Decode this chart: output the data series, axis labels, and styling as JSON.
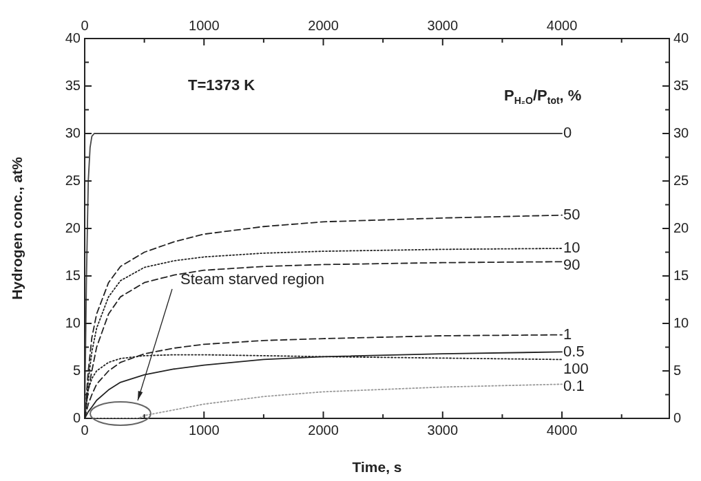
{
  "chart_data": {
    "type": "line",
    "xlabel": "Time, s",
    "ylabel": "Hydrogen conc., at%",
    "legend_title": "P$_{H₂O}$/P$_{tot}$, %",
    "annotations": [
      "T=1373 K",
      "Steam starved region"
    ],
    "xlim": [
      0,
      4900
    ],
    "xticks": [
      0,
      {
        "value": 500,
        "label": null
      },
      1000,
      {
        "value": 1500,
        "label": null
      },
      2000,
      {
        "value": 2500,
        "label": null
      },
      3000,
      {
        "value": 3500,
        "label": null
      },
      4000,
      {
        "value": 4500,
        "label": null
      }
    ],
    "x2lim": [
      0,
      4900
    ],
    "x2ticks": [
      0,
      {
        "value": 500,
        "label": null
      },
      1000,
      {
        "value": 1500,
        "label": null
      },
      2000,
      {
        "value": 2500,
        "label": null
      },
      3000,
      {
        "value": 3500,
        "label": null
      },
      4000,
      {
        "value": 4500,
        "label": null
      }
    ],
    "ylim": [
      0,
      40
    ],
    "yticks": [
      0,
      {
        "value": 2.5,
        "label": null
      },
      5,
      {
        "value": 7.5,
        "label": null
      },
      10,
      {
        "value": 12.5,
        "label": null
      },
      15,
      {
        "value": 17.5,
        "label": null
      },
      20,
      {
        "value": 22.5,
        "label": null
      },
      25,
      {
        "value": 27.5,
        "label": null
      },
      30,
      {
        "value": 32.5,
        "label": null
      },
      35,
      {
        "value": 37.5,
        "label": null
      },
      40
    ],
    "y2lim": [
      0,
      40
    ],
    "y2ticks": [
      0,
      {
        "value": 2.5,
        "label": null
      },
      5,
      {
        "value": 7.5,
        "label": null
      },
      10,
      {
        "value": 12.5,
        "label": null
      },
      15,
      {
        "value": 17.5,
        "label": null
      },
      20,
      {
        "value": 22.5,
        "label": null
      },
      25,
      {
        "value": 27.5,
        "label": null
      },
      30,
      {
        "value": 32.5,
        "label": null
      },
      35,
      {
        "value": 37.5,
        "label": null
      },
      40
    ],
    "grid": false,
    "legend": false,
    "marker": "none",
    "series": [
      {
        "name": "0",
        "color": "#444444",
        "line_style": "solid",
        "x": [
          0,
          15,
          30,
          45,
          60,
          80,
          4000
        ],
        "values": [
          0,
          15,
          25,
          28.5,
          29.7,
          30,
          30
        ]
      },
      {
        "name": "50",
        "color": "#222222",
        "line_style": "dashed",
        "x": [
          0,
          30,
          60,
          100,
          200,
          300,
          500,
          750,
          1000,
          1500,
          2000,
          3000,
          4000
        ],
        "values": [
          0,
          5,
          8.5,
          11,
          14.3,
          16,
          17.5,
          18.6,
          19.4,
          20.2,
          20.7,
          21.1,
          21.4
        ]
      },
      {
        "name": "10",
        "color": "#222222",
        "line_style": "dotted",
        "x": [
          0,
          30,
          60,
          100,
          200,
          300,
          500,
          750,
          1000,
          1500,
          2000,
          3000,
          4000
        ],
        "values": [
          0,
          4,
          7,
          9.5,
          12.8,
          14.5,
          15.9,
          16.6,
          17.0,
          17.4,
          17.6,
          17.8,
          17.9
        ]
      },
      {
        "name": "90",
        "color": "#222222",
        "line_style": "dashed",
        "x": [
          0,
          30,
          60,
          100,
          200,
          300,
          500,
          750,
          1000,
          1500,
          2000,
          3000,
          4000
        ],
        "values": [
          0,
          3,
          5,
          7.5,
          11,
          12.8,
          14.3,
          15.1,
          15.6,
          16.0,
          16.2,
          16.4,
          16.5
        ]
      },
      {
        "name": "1",
        "color": "#222222",
        "line_style": "dashed",
        "x": [
          0,
          30,
          60,
          100,
          200,
          300,
          500,
          750,
          1000,
          1500,
          2000,
          3000,
          4000
        ],
        "values": [
          0,
          1.5,
          2.5,
          3.6,
          5,
          5.9,
          6.8,
          7.4,
          7.8,
          8.2,
          8.4,
          8.7,
          8.8
        ]
      },
      {
        "name": "0.5",
        "color": "#222222",
        "line_style": "solid",
        "x": [
          0,
          30,
          60,
          100,
          200,
          300,
          500,
          750,
          1000,
          1500,
          2000,
          3000,
          4000
        ],
        "values": [
          0,
          0.7,
          1.2,
          1.9,
          3,
          3.8,
          4.6,
          5.2,
          5.6,
          6.2,
          6.5,
          6.8,
          7.0
        ]
      },
      {
        "name": "100",
        "color": "#222222",
        "line_style": "dotted",
        "x": [
          0,
          30,
          60,
          100,
          200,
          300,
          500,
          750,
          1000,
          1500,
          2000,
          3000,
          4000
        ],
        "values": [
          0,
          3,
          4.2,
          5.0,
          5.9,
          6.3,
          6.6,
          6.7,
          6.7,
          6.6,
          6.5,
          6.35,
          6.2
        ]
      },
      {
        "name": "0.1",
        "color": "#999999",
        "line_style": "dotted",
        "x": [
          0,
          450,
          500,
          750,
          1000,
          1500,
          2000,
          3000,
          4000
        ],
        "values": [
          0,
          0,
          0.3,
          0.9,
          1.5,
          2.3,
          2.8,
          3.3,
          3.6
        ]
      }
    ]
  }
}
